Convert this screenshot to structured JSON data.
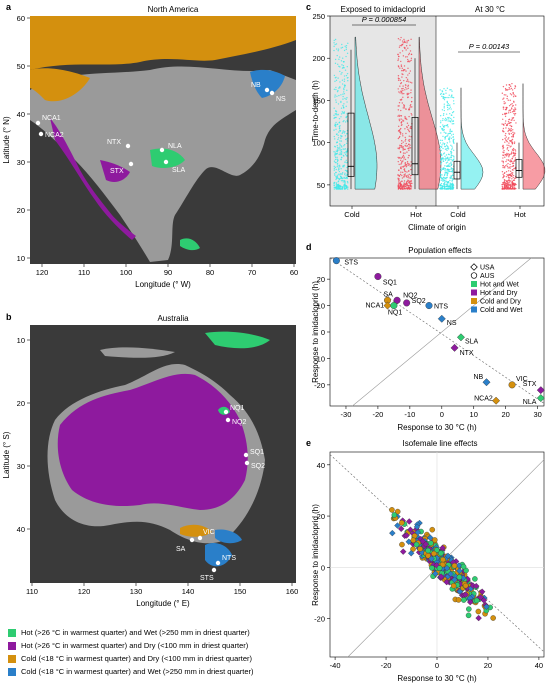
{
  "panel_a": {
    "letter": "a",
    "title": "North America",
    "xlabel": "Longitude (° W)",
    "ylabel": "Latitude (° N)",
    "xticks": [
      "120",
      "110",
      "100",
      "90",
      "80",
      "70",
      "60"
    ],
    "yticks": [
      "60",
      "50",
      "40",
      "30",
      "20",
      "10"
    ],
    "sites": [
      "NCA1",
      "NCA2",
      "NTX",
      "STX",
      "NLA",
      "SLA",
      "NB",
      "NS"
    ]
  },
  "panel_b": {
    "letter": "b",
    "title": "Australia",
    "xlabel": "Longitude (° E)",
    "ylabel": "Latitude (° S)",
    "xticks": [
      "110",
      "120",
      "130",
      "140",
      "150",
      "160"
    ],
    "yticks": [
      "10",
      "20",
      "30",
      "40"
    ],
    "sites": [
      "NQ1",
      "NQ2",
      "SQ1",
      "SQ2",
      "VIC",
      "SA",
      "NTS",
      "STS"
    ]
  },
  "map_legend": [
    {
      "color": "#2ecc71",
      "text": "Hot (>26 °C in warmest quarter) and Wet (>250 mm in driest quarter)"
    },
    {
      "color": "#8e1a9e",
      "text": "Hot (>26 °C in warmest quarter) and Dry (<100 mm in driest quarter)"
    },
    {
      "color": "#d4900e",
      "text": "Cold (<18 °C in warmest quarter) and Dry (<100 mm in driest quarter)"
    },
    {
      "color": "#2a7fc9",
      "text": "Cold (<18 °C in warmest quarter) and Wet (>250 mm in driest quarter)"
    }
  ],
  "panel_c": {
    "letter": "c",
    "left_title": "Exposed to imidacloprid",
    "right_title": "At 30 °C",
    "p1": "P = 0.000854",
    "p2": "P = 0.00143",
    "ylabel": "Time-to-death (h)",
    "xlabel": "Climate of origin",
    "yticks": [
      "250",
      "200",
      "150",
      "100",
      "50"
    ],
    "cats": [
      "Cold",
      "Hot",
      "Cold",
      "Hot"
    ],
    "colors": {
      "cold": "#3ee8e8",
      "hot": "#f04a5a"
    }
  },
  "panel_d": {
    "letter": "d",
    "title": "Population effects",
    "xlabel": "Response to 30 °C (h)",
    "ylabel": "Response to imidacloprid (h)",
    "xticks": [
      "-30",
      "-20",
      "-10",
      "0",
      "10",
      "20",
      "30"
    ],
    "yticks": [
      "20",
      "10",
      "0",
      "-10",
      "-20"
    ],
    "legend": [
      {
        "shape": "diamond",
        "text": "USA"
      },
      {
        "shape": "circle",
        "text": "AUS"
      },
      {
        "color": "#2ecc71",
        "text": "Hot and Wet"
      },
      {
        "color": "#8e1a9e",
        "text": "Hot and Dry"
      },
      {
        "color": "#d4900e",
        "text": "Cold and Dry"
      },
      {
        "color": "#2a7fc9",
        "text": "Cold and Wet"
      }
    ],
    "points_labels": [
      "STS",
      "SQ1",
      "SA",
      "NQ2",
      "SQ2",
      "NCA1",
      "NQ1",
      "NTS",
      "NS",
      "SLA",
      "NTX",
      "NB",
      "VIC",
      "STX",
      "NCA2",
      "NLA"
    ]
  },
  "panel_e": {
    "letter": "e",
    "title": "Isofemale line effects",
    "xlabel": "Response to 30 °C (h)",
    "ylabel": "Response to imidacloprid (h)",
    "xticks": [
      "-40",
      "-20",
      "0",
      "20",
      "40"
    ],
    "yticks": [
      "40",
      "20",
      "0",
      "-20"
    ]
  },
  "chart_data": [
    {
      "type": "scatter",
      "title": "Population effects",
      "xlabel": "Response to 30 °C (h)",
      "ylabel": "Response to imidacloprid (h)",
      "xlim": [
        -35,
        32
      ],
      "ylim": [
        -28,
        28
      ],
      "points": [
        {
          "label": "STS",
          "x": -33,
          "y": 27,
          "group": "Cold and Wet",
          "country": "AUS"
        },
        {
          "label": "SQ1",
          "x": -20,
          "y": 21,
          "group": "Hot and Dry",
          "country": "AUS"
        },
        {
          "label": "SA",
          "x": -17,
          "y": 12,
          "group": "Cold and Dry",
          "country": "AUS"
        },
        {
          "label": "NQ2",
          "x": -14,
          "y": 12,
          "group": "Hot and Dry",
          "country": "AUS"
        },
        {
          "label": "SQ2",
          "x": -11,
          "y": 11,
          "group": "Hot and Dry",
          "country": "AUS"
        },
        {
          "label": "NCA1",
          "x": -17,
          "y": 10,
          "group": "Cold and Dry",
          "country": "USA"
        },
        {
          "label": "NQ1",
          "x": -15,
          "y": 10,
          "group": "Hot and Wet",
          "country": "AUS"
        },
        {
          "label": "NTS",
          "x": -4,
          "y": 10,
          "group": "Cold and Wet",
          "country": "AUS"
        },
        {
          "label": "NS",
          "x": 0,
          "y": 5,
          "group": "Cold and Wet",
          "country": "USA"
        },
        {
          "label": "SLA",
          "x": 6,
          "y": -2,
          "group": "Hot and Wet",
          "country": "USA"
        },
        {
          "label": "NTX",
          "x": 4,
          "y": -6,
          "group": "Hot and Dry",
          "country": "USA"
        },
        {
          "label": "NB",
          "x": 14,
          "y": -19,
          "group": "Cold and Wet",
          "country": "USA"
        },
        {
          "label": "VIC",
          "x": 22,
          "y": -20,
          "group": "Cold and Dry",
          "country": "AUS"
        },
        {
          "label": "STX",
          "x": 31,
          "y": -22,
          "group": "Hot and Dry",
          "country": "USA"
        },
        {
          "label": "NCA2",
          "x": 17,
          "y": -26,
          "group": "Cold and Dry",
          "country": "USA"
        },
        {
          "label": "NLA",
          "x": 31,
          "y": -25,
          "group": "Hot and Wet",
          "country": "USA"
        }
      ]
    },
    {
      "type": "scatter",
      "title": "Isofemale line effects",
      "xlabel": "Response to 30 °C (h)",
      "ylabel": "Response to imidacloprid (h)",
      "xlim": [
        -42,
        42
      ],
      "ylim": [
        -35,
        45
      ]
    }
  ]
}
